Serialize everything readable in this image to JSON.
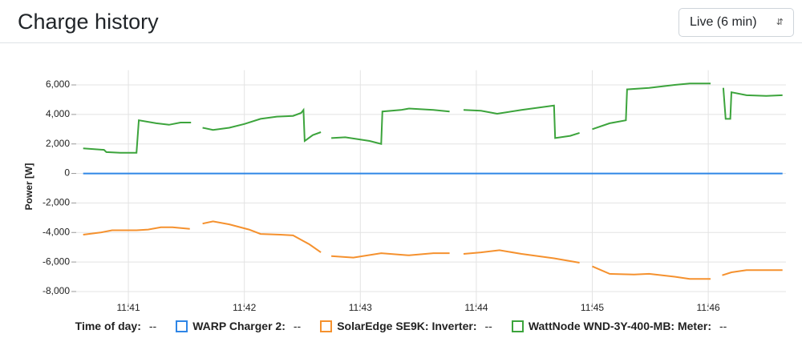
{
  "header": {
    "title": "Charge history",
    "select": "Live (6 min)"
  },
  "chart_data": {
    "type": "line",
    "ylabel": "Power [W]",
    "xlabel": "Time of day",
    "legend_placeholder": "--",
    "xlim": [
      40.55,
      46.67
    ],
    "xticks": [
      {
        "value": 41,
        "label": "11:41"
      },
      {
        "value": 42,
        "label": "11:42"
      },
      {
        "value": 43,
        "label": "11:43"
      },
      {
        "value": 44,
        "label": "11:44"
      },
      {
        "value": 45,
        "label": "11:45"
      },
      {
        "value": 46,
        "label": "11:46"
      }
    ],
    "ylim": [
      -8800,
      7000
    ],
    "yticks": [
      {
        "value": 6000,
        "label": "6,000"
      },
      {
        "value": 4000,
        "label": "4,000"
      },
      {
        "value": 2000,
        "label": "2,000"
      },
      0,
      {
        "value": -2000,
        "label": "-2,000"
      },
      {
        "value": -4000,
        "label": "-4,000"
      },
      {
        "value": -6000,
        "label": "-6,000"
      },
      {
        "value": -8000,
        "label": "-8,000"
      }
    ],
    "grid": true,
    "series": [
      {
        "name": "WARP Charger 2",
        "color": "#2f86e6",
        "x": [
          40.61,
          46.64
        ],
        "values": [
          0,
          0
        ]
      },
      {
        "name": "SolarEdge SE9K: Inverter",
        "color": "#f5912e",
        "x": [
          40.61,
          40.76,
          40.86,
          41.07,
          41.17,
          41.28,
          41.38,
          41.53,
          41.58,
          41.64,
          41.73,
          41.87,
          42.04,
          42.14,
          42.31,
          42.42,
          42.56,
          42.66,
          42.7,
          42.75,
          42.94,
          43.18,
          43.42,
          43.63,
          43.77,
          43.83,
          43.89,
          44.04,
          44.2,
          44.39,
          44.67,
          44.89,
          44.94,
          45.0,
          45.15,
          45.36,
          45.49,
          45.71,
          45.84,
          46.02,
          46.07,
          46.12,
          46.2,
          46.33,
          46.5,
          46.64
        ],
        "values": [
          -4150,
          -4000,
          -3850,
          -3850,
          -3800,
          -3650,
          -3650,
          -3750,
          null,
          -3400,
          -3250,
          -3450,
          -3800,
          -4100,
          -4150,
          -4200,
          -4800,
          -5350,
          null,
          -5600,
          -5700,
          -5400,
          -5550,
          -5400,
          -5400,
          null,
          -5450,
          -5350,
          -5200,
          -5450,
          -5750,
          -6050,
          null,
          -6300,
          -6800,
          -6850,
          -6800,
          -7000,
          -7150,
          -7150,
          null,
          -6900,
          -6700,
          -6550,
          -6550,
          -6550
        ]
      },
      {
        "name": "WattNode WND-3Y-400-MB: Meter",
        "color": "#3ca43c",
        "x": [
          40.61,
          40.79,
          40.81,
          40.93,
          41.07,
          41.09,
          41.24,
          41.35,
          41.45,
          41.54,
          41.59,
          41.64,
          41.73,
          41.87,
          42.0,
          42.14,
          42.28,
          42.42,
          42.49,
          42.51,
          42.52,
          42.59,
          42.66,
          42.7,
          42.75,
          42.87,
          43.08,
          43.18,
          43.19,
          43.35,
          43.42,
          43.63,
          43.77,
          43.83,
          43.89,
          44.04,
          44.18,
          44.39,
          44.67,
          44.68,
          44.81,
          44.89,
          44.94,
          45.0,
          45.15,
          45.29,
          45.3,
          45.49,
          45.71,
          45.84,
          46.02,
          46.08,
          46.13,
          46.15,
          46.19,
          46.2,
          46.33,
          46.5,
          46.64
        ],
        "values": [
          1700,
          1600,
          1450,
          1400,
          1400,
          3600,
          3400,
          3300,
          3450,
          3450,
          null,
          3100,
          2950,
          3100,
          3350,
          3700,
          3850,
          3900,
          4100,
          4300,
          2200,
          2600,
          2800,
          null,
          2400,
          2450,
          2200,
          2000,
          4200,
          4300,
          4400,
          4300,
          4200,
          null,
          4300,
          4250,
          4050,
          4300,
          4600,
          2400,
          2550,
          2750,
          null,
          3000,
          3400,
          3600,
          5700,
          5800,
          6000,
          6100,
          6100,
          null,
          5800,
          3700,
          3700,
          5500,
          5300,
          5250,
          5300
        ]
      }
    ]
  }
}
